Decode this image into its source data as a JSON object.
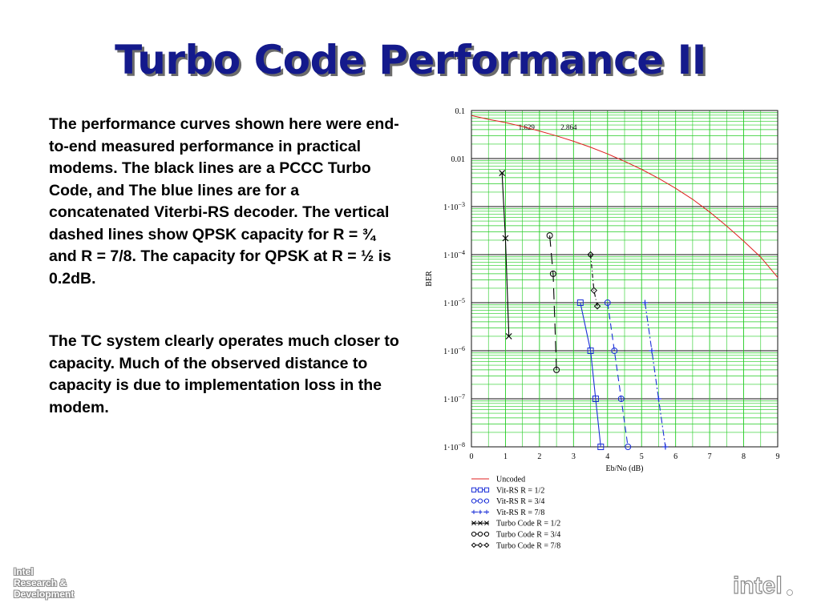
{
  "slide": {
    "title": "Turbo Code Performance II",
    "paragraphs": [
      "The performance curves shown here were end-to-end measured performance in practical modems.  The black lines are a PCCC Turbo Code, and The blue lines are for a concatenated Viterbi-RS decoder.   The vertical dashed lines show QPSK capacity for R = ¾ and R = 7/8.  The capacity for QPSK at R = ½ is 0.2dB.",
      "The TC system clearly operates much closer to capacity.  Much of the observed distance to capacity is due to implementation loss in the modem."
    ],
    "footer_lines": [
      "Intel",
      "Research &",
      "Development"
    ],
    "logo_text": "intel"
  },
  "colors": {
    "title": "#141a8c",
    "grid": "#22cc22",
    "uncoded": "#e02020",
    "viterbi": "#1a2ed8",
    "turbo": "#000000"
  },
  "chart_data": {
    "type": "line",
    "xlabel": "Eb/No (dB)",
    "ylabel": "BER",
    "xlim": [
      0,
      9
    ],
    "ylim": [
      1e-08,
      0.1
    ],
    "yscale": "log",
    "xticks": [
      0,
      1,
      2,
      3,
      4,
      5,
      6,
      7,
      8,
      9
    ],
    "yticks": [
      {
        "value": 0.1,
        "label": "0.1"
      },
      {
        "value": 0.01,
        "label": "0.01"
      },
      {
        "value": 0.001,
        "label": "1·10",
        "exp": "−3"
      },
      {
        "value": 0.0001,
        "label": "1·10",
        "exp": "−4"
      },
      {
        "value": 1e-05,
        "label": "1·10",
        "exp": "−5"
      },
      {
        "value": 1e-06,
        "label": "1·10",
        "exp": "−6"
      },
      {
        "value": 1e-07,
        "label": "1·10",
        "exp": "−7"
      },
      {
        "value": 1e-08,
        "label": "1·10",
        "exp": "−8"
      }
    ],
    "grid": true,
    "legend_position": "bottom",
    "annotations": [
      {
        "text": "1.629",
        "x": 1.62,
        "y": 0.045
      },
      {
        "text": "2.864",
        "x": 2.86,
        "y": 0.045
      }
    ],
    "series": [
      {
        "name": "Uncoded",
        "color": "#e02020",
        "dash": "",
        "marker": "none",
        "x": [
          0,
          0.5,
          1,
          1.5,
          2,
          2.5,
          3,
          3.5,
          4,
          4.5,
          5,
          5.5,
          6,
          6.5,
          7,
          7.5,
          8,
          8.5,
          9
        ],
        "y": [
          0.0786,
          0.0655,
          0.0563,
          0.0464,
          0.0375,
          0.0296,
          0.0229,
          0.0172,
          0.0125,
          0.00878,
          0.00595,
          0.00387,
          0.0024,
          0.00142,
          0.000773,
          0.000394,
          0.000191,
          8.89e-05,
          3.36e-05
        ]
      },
      {
        "name": "Vit-RS R = 1/2",
        "color": "#1a2ed8",
        "dash": "",
        "marker": "square",
        "x": [
          3.2,
          3.5,
          3.65,
          3.8
        ],
        "y": [
          1e-05,
          1e-06,
          1e-07,
          1e-08
        ]
      },
      {
        "name": "Vit-RS R = 3/4",
        "color": "#1a2ed8",
        "dash": "8,5",
        "marker": "circle",
        "x": [
          4.0,
          4.2,
          4.4,
          4.6
        ],
        "y": [
          1e-05,
          1e-06,
          1e-07,
          1e-08
        ]
      },
      {
        "name": "Vit-RS R = 7/8",
        "color": "#1a2ed8",
        "dash": "8,3,2,3",
        "marker": "plus",
        "x": [
          5.1,
          5.3,
          5.5,
          5.7
        ],
        "y": [
          1e-05,
          1e-06,
          1e-07,
          1e-08
        ]
      },
      {
        "name": "Turbo Code R = 1/2",
        "color": "#000000",
        "dash": "",
        "marker": "cross",
        "x": [
          0.9,
          1.0,
          1.1
        ],
        "y": [
          0.005,
          0.00022,
          2e-06
        ]
      },
      {
        "name": "Turbo Code R = 3/4",
        "color": "#000000",
        "dash": "14,8",
        "marker": "circle",
        "x": [
          2.3,
          2.4,
          2.5
        ],
        "y": [
          0.00025,
          4e-05,
          4e-07
        ]
      },
      {
        "name": "Turbo Code R = 7/8",
        "color": "#000000",
        "dash": "5,3,1,3",
        "marker": "diamond",
        "x": [
          3.5,
          3.6,
          3.7
        ],
        "y": [
          0.0001,
          1.8e-05,
          8.5e-06
        ]
      }
    ]
  }
}
